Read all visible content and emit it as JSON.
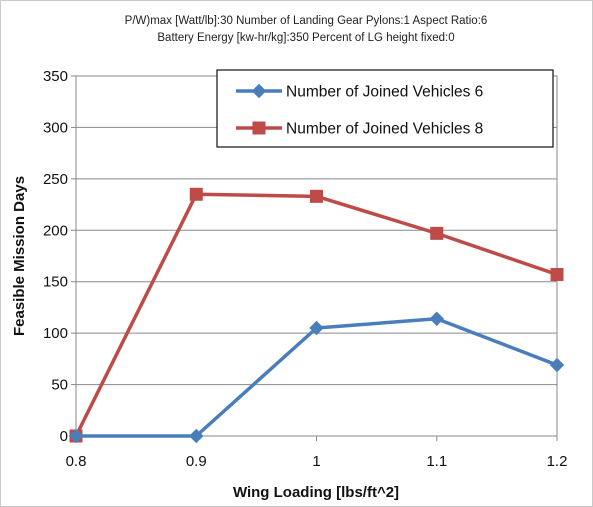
{
  "chart_data": {
    "type": "line",
    "title_lines": [
      "P/W)max [Watt/lb]:30 Number of Landing Gear Pylons:1 Aspect Ratio:6",
      "Battery Energy [kw-hr/kg]:350 Percent of LG height fixed:0"
    ],
    "xlabel": "Wing Loading  [lbs/ft^2]",
    "ylabel": "Feasible Mission Days",
    "x": [
      0.8,
      0.9,
      1.0,
      1.1,
      1.2
    ],
    "x_tick_labels": [
      "0.8",
      "0.9",
      "1",
      "1.1",
      "1.2"
    ],
    "xlim": [
      0.8,
      1.2
    ],
    "ylim": [
      0,
      350
    ],
    "y_ticks": [
      0,
      50,
      100,
      150,
      200,
      250,
      300,
      350
    ],
    "y_tick_labels": [
      "0",
      "50",
      "100",
      "150",
      "200",
      "250",
      "300",
      "350"
    ],
    "grid": "horizontal",
    "legend_position": "top-right",
    "series": [
      {
        "name": "Number of Joined Vehicles 6",
        "color": "#4a7ebb",
        "marker": "diamond",
        "values": [
          0,
          0,
          105,
          114,
          69
        ]
      },
      {
        "name": "Number of Joined Vehicles 8",
        "color": "#be4b48",
        "marker": "square",
        "values": [
          0,
          235,
          233,
          197,
          157
        ]
      }
    ]
  }
}
